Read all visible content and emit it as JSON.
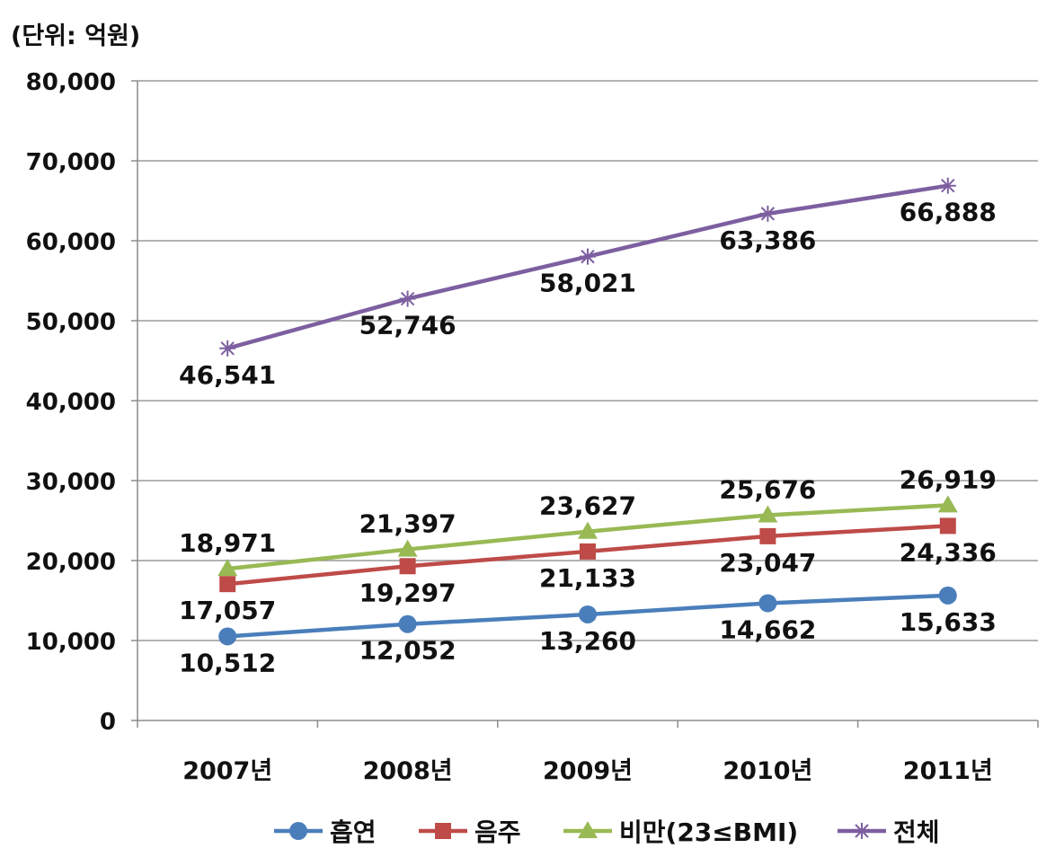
{
  "unit_label": "(단위: 억원)",
  "chart_data": {
    "type": "line",
    "categories": [
      "2007년",
      "2008년",
      "2009년",
      "2010년",
      "2011년"
    ],
    "ylim": [
      0,
      80000
    ],
    "yticks": [
      0,
      10000,
      20000,
      30000,
      40000,
      50000,
      60000,
      70000,
      80000
    ],
    "ytick_labels": [
      "0",
      "10,000",
      "20,000",
      "30,000",
      "40,000",
      "50,000",
      "60,000",
      "70,000",
      "80,000"
    ],
    "grid": "horizontal",
    "legend_position": "bottom",
    "series": [
      {
        "name": "흡연",
        "values": [
          10512,
          12052,
          13260,
          14662,
          15633
        ],
        "labels": [
          "10,512",
          "12,052",
          "13,260",
          "14,662",
          "15,633"
        ],
        "color": "#4a7ebb",
        "marker": "circle",
        "label_side": "below"
      },
      {
        "name": "음주",
        "values": [
          17057,
          19297,
          21133,
          23047,
          24336
        ],
        "labels": [
          "17,057",
          "19,297",
          "21,133",
          "23,047",
          "24,336"
        ],
        "color": "#be4b48",
        "marker": "square",
        "label_side": "below"
      },
      {
        "name": "비만(23≤BMI)",
        "values": [
          18971,
          21397,
          23627,
          25676,
          26919
        ],
        "labels": [
          "18,971",
          "21,397",
          "23,627",
          "25,676",
          "26,919"
        ],
        "color": "#98b954",
        "marker": "triangle",
        "label_side": "above"
      },
      {
        "name": "전체",
        "values": [
          46541,
          52746,
          58021,
          63386,
          66888
        ],
        "labels": [
          "46,541",
          "52,746",
          "58,021",
          "63,386",
          "66,888"
        ],
        "color": "#7d5fa0",
        "marker": "star",
        "label_side": "below"
      }
    ]
  }
}
